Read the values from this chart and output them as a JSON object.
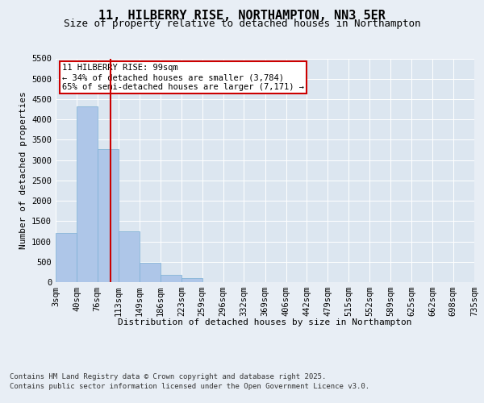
{
  "title": "11, HILBERRY RISE, NORTHAMPTON, NN3 5ER",
  "subtitle": "Size of property relative to detached houses in Northampton",
  "xlabel": "Distribution of detached houses by size in Northampton",
  "ylabel": "Number of detached properties",
  "footer_line1": "Contains HM Land Registry data © Crown copyright and database right 2025.",
  "footer_line2": "Contains public sector information licensed under the Open Government Licence v3.0.",
  "property_label": "11 HILBERRY RISE: 99sqm",
  "annotation_line2": "← 34% of detached houses are smaller (3,784)",
  "annotation_line3": "65% of semi-detached houses are larger (7,171) →",
  "bins": [
    3,
    40,
    76,
    113,
    149,
    186,
    223,
    259,
    296,
    332,
    369,
    406,
    442,
    479,
    515,
    552,
    589,
    625,
    662,
    698,
    735
  ],
  "counts": [
    1210,
    4330,
    3270,
    1240,
    480,
    185,
    90,
    0,
    0,
    0,
    0,
    0,
    0,
    0,
    0,
    0,
    0,
    0,
    0,
    0
  ],
  "bar_color": "#aec6e8",
  "bar_edge_color": "#7aafd4",
  "vline_color": "#cc0000",
  "vline_x": 99,
  "ylim": [
    0,
    5500
  ],
  "yticks": [
    0,
    500,
    1000,
    1500,
    2000,
    2500,
    3000,
    3500,
    4000,
    4500,
    5000,
    5500
  ],
  "bg_color": "#e8eef5",
  "plot_bg_color": "#dce6f0",
  "grid_color": "#ffffff",
  "annotation_box_color": "#cc0000",
  "title_fontsize": 11,
  "subtitle_fontsize": 9,
  "axis_label_fontsize": 8,
  "tick_fontsize": 7.5,
  "annotation_fontsize": 7.5,
  "footer_fontsize": 6.5
}
